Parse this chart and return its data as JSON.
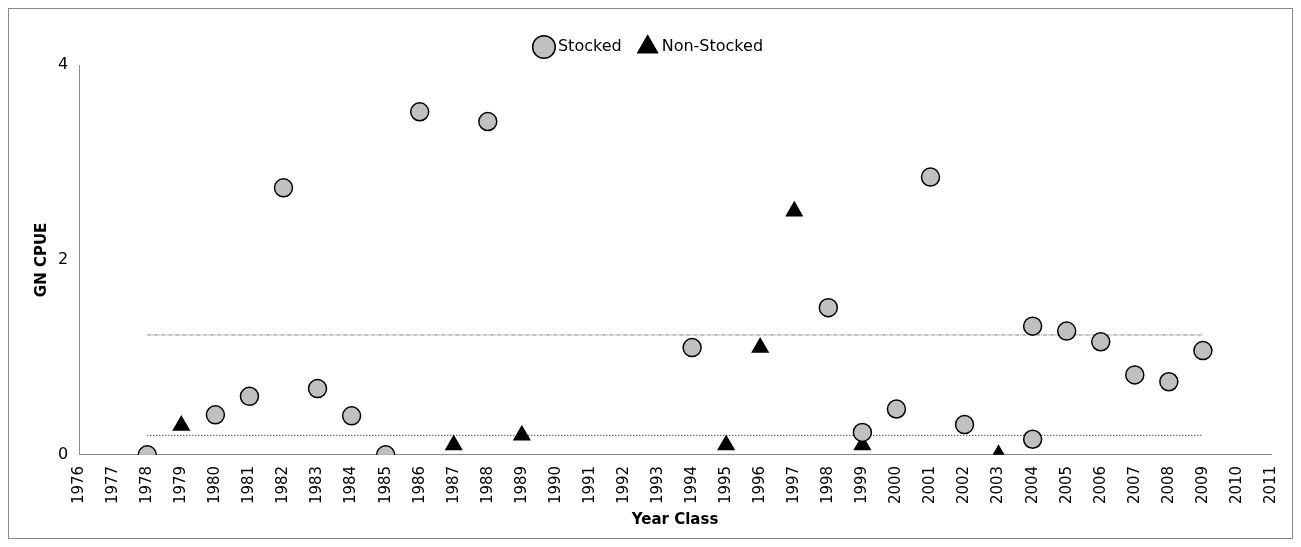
{
  "chart_data": {
    "type": "scatter",
    "xlabel": "Year Class",
    "ylabel": "GN CPUE",
    "xlim": [
      1976,
      2011
    ],
    "xticks": [
      1976,
      1977,
      1978,
      1979,
      1980,
      1981,
      1982,
      1983,
      1984,
      1985,
      1986,
      1987,
      1988,
      1989,
      1990,
      1991,
      1992,
      1993,
      1994,
      1995,
      1996,
      1997,
      1998,
      1999,
      2000,
      2001,
      2002,
      2003,
      2004,
      2005,
      2006,
      2007,
      2008,
      2009,
      2010,
      2011
    ],
    "ylim": [
      0,
      4
    ],
    "yticks": [
      0,
      2,
      4
    ],
    "grid": false,
    "legend": "top",
    "series": [
      {
        "name": "Stocked",
        "color": "#c0c0c0",
        "marker": "circle",
        "x": [
          1978,
          1980,
          1981,
          1982,
          1983,
          1984,
          1985,
          1986,
          1988,
          1994,
          1998,
          1999,
          2000,
          2001,
          2002,
          2004,
          2004,
          2005,
          2006,
          2007,
          2008,
          2009
        ],
        "values": [
          0,
          0.41,
          0.6,
          2.74,
          0.68,
          0.4,
          0,
          3.52,
          3.42,
          1.1,
          1.51,
          0.23,
          0.47,
          2.85,
          0.31,
          1.32,
          0.16,
          1.27,
          1.16,
          0.82,
          0.75,
          1.07
        ]
      },
      {
        "name": "Non-Stocked",
        "color": "#000000",
        "marker": "triangle",
        "x": [
          1979,
          1987,
          1989,
          1995,
          1996,
          1997,
          1999,
          2003
        ],
        "values": [
          0.3,
          0.1,
          0.2,
          0.1,
          1.1,
          2.5,
          0.1,
          0
        ]
      },
      {
        "type": "line",
        "color": "#808080",
        "line_style": "dashed",
        "x": [
          1978,
          2009
        ],
        "values": [
          1.23,
          1.23
        ]
      },
      {
        "type": "line",
        "color": "#000000",
        "line_style": "dotted",
        "x": [
          1978,
          2009
        ],
        "values": [
          0.2,
          0.2
        ]
      }
    ]
  }
}
